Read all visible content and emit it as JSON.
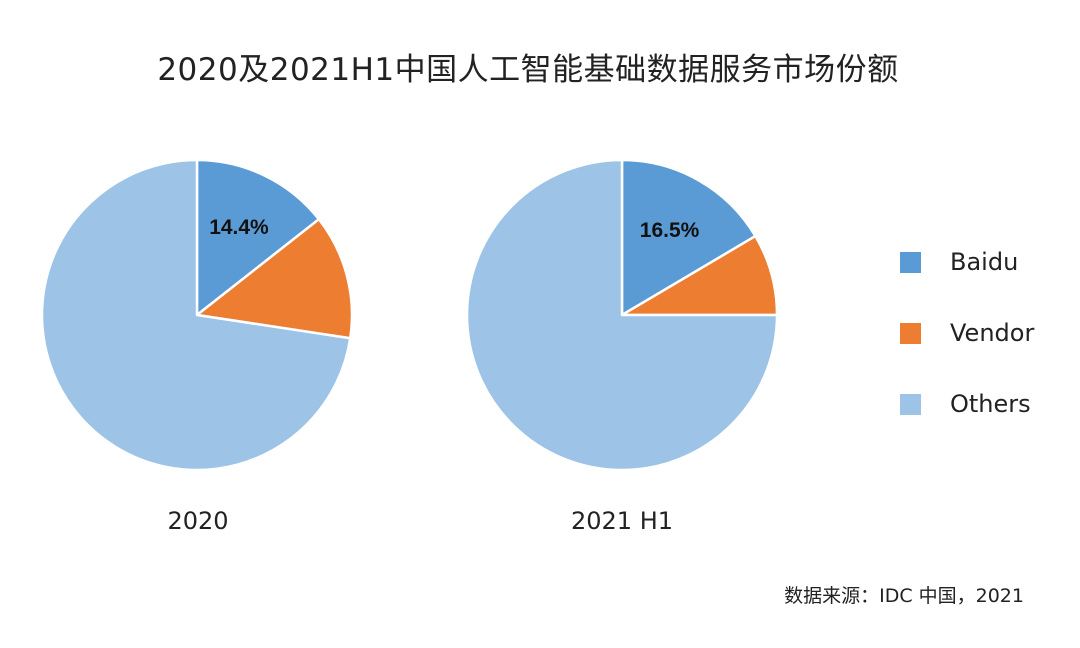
{
  "chart_data": {
    "type": "pie",
    "title": "2020及2021H1中国人工智能基础数据服务市场份额",
    "categories": [
      "Baidu",
      "Vendor",
      "Others"
    ],
    "colors": {
      "Baidu": "#5b9bd5",
      "Vendor": "#ed7d31",
      "Others": "#9dc3e6"
    },
    "series": [
      {
        "name": "2020",
        "values": [
          14.4,
          13.0,
          72.6
        ],
        "labels": [
          "14.4%",
          "",
          ""
        ]
      },
      {
        "name": "2021 H1",
        "values": [
          16.5,
          8.5,
          75.0
        ],
        "labels": [
          "16.5%",
          "",
          ""
        ]
      }
    ],
    "legend_position": "right",
    "source": "数据来源：IDC 中国，2021"
  }
}
